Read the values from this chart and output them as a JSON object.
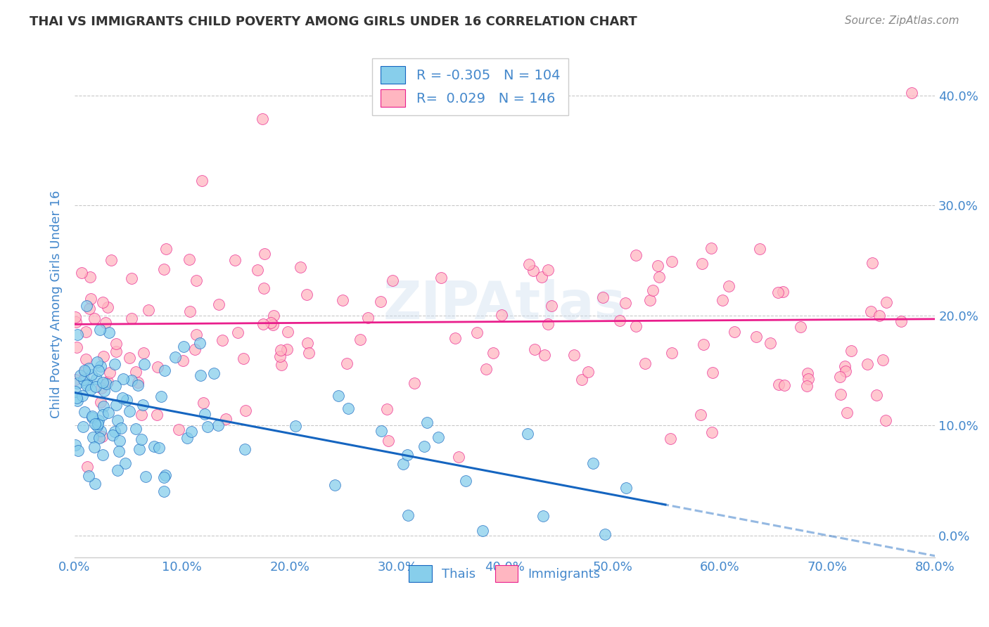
{
  "title": "THAI VS IMMIGRANTS CHILD POVERTY AMONG GIRLS UNDER 16 CORRELATION CHART",
  "source": "Source: ZipAtlas.com",
  "ylabel": "Child Poverty Among Girls Under 16",
  "xlim": [
    0.0,
    0.8
  ],
  "ylim": [
    -0.02,
    0.44
  ],
  "thai_color": "#87CEEB",
  "immigrant_color": "#FFB6C1",
  "thai_line_color": "#1565C0",
  "immigrant_line_color": "#E91E8C",
  "thai_R": -0.305,
  "thai_N": 104,
  "immigrant_R": 0.029,
  "immigrant_N": 146,
  "background_color": "#FFFFFF",
  "grid_color": "#BBBBBB",
  "title_color": "#333333",
  "axis_label_color": "#4488CC",
  "watermark_color": "#CCDDEE"
}
